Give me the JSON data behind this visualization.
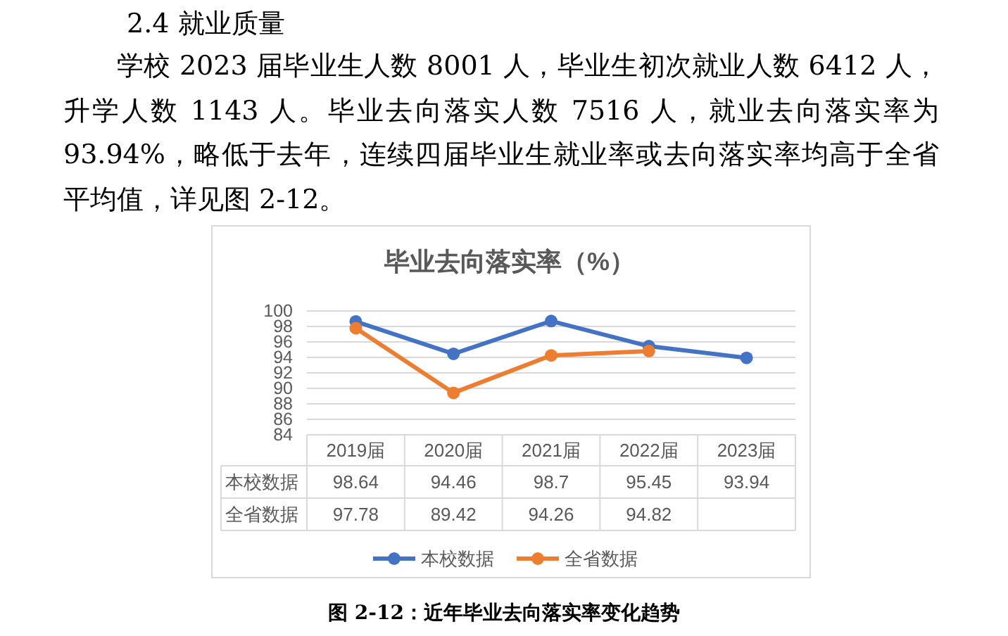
{
  "chart_data": {
    "type": "line",
    "title": "毕业去向落实率（%）",
    "categories": [
      "2019届",
      "2020届",
      "2021届",
      "2022届",
      "2023届"
    ],
    "series": [
      {
        "name": "本校数据",
        "color": "#4472c4",
        "values": [
          98.64,
          94.46,
          98.7,
          95.45,
          93.94
        ]
      },
      {
        "name": "全省数据",
        "color": "#ed7d31",
        "values": [
          97.78,
          89.42,
          94.26,
          94.82,
          null
        ]
      }
    ],
    "ylim": [
      84,
      100
    ],
    "yticks": [
      84,
      86,
      88,
      90,
      92,
      94,
      96,
      98,
      100
    ],
    "grid": "y",
    "legend": "bottom",
    "marker": "circle",
    "data_labels": true,
    "annotations": [
      "2.4 就业质量",
      "学校 2023 届毕业生人数 8001 人，毕业生初次就业人数 6412 人，升学人数 1143 人。毕业去向落实人数 7516 人，就业去向落实率为 93.94%，略低于去年，连续四届毕业生就业率或去向落实率均高于全省平均值，详见图 2-12。",
      "图 2-12：近年毕业去向落实率变化趋势"
    ]
  }
}
